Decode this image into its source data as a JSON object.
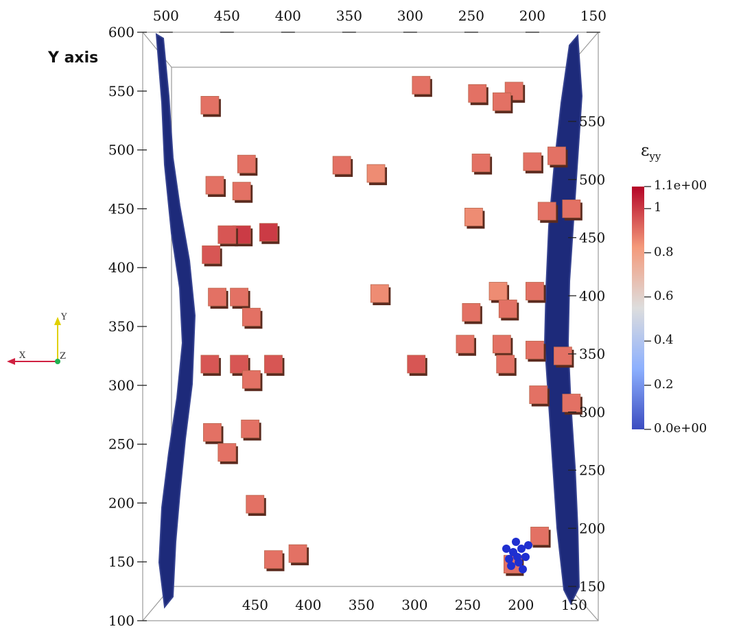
{
  "chart_data": {
    "type": "scatter",
    "ylabel": "Y axis",
    "x_ticks": [
      "500",
      "450",
      "400",
      "350",
      "300",
      "250",
      "200",
      "150"
    ],
    "y_ticks_left": [
      "600",
      "550",
      "500",
      "450",
      "400",
      "350",
      "300",
      "250",
      "200",
      "150",
      "100"
    ],
    "y_ticks_right": [
      "550",
      "500",
      "450",
      "400",
      "350",
      "300",
      "250",
      "200",
      "150"
    ],
    "xlim": [
      519,
      146
    ],
    "ylim": [
      100,
      600
    ],
    "colorbar": {
      "title": "ε",
      "subscript": "yy",
      "range": [
        0.0,
        1.1
      ],
      "tick_labels": [
        "1.1e+00",
        "1",
        "0.8",
        "0.6",
        "0.4",
        "0.2",
        "0.0e+00"
      ],
      "tick_values": [
        1.1,
        1.0,
        0.8,
        0.6,
        0.4,
        0.2,
        0.0
      ]
    },
    "orientation_axes": {
      "y": "Y",
      "x": "X",
      "z": "Z"
    },
    "strain_blocks_xy_value": [
      [
        464,
        538,
        0.9
      ],
      [
        291,
        555,
        0.9
      ],
      [
        245,
        548,
        0.9
      ],
      [
        215,
        550,
        0.9
      ],
      [
        225,
        541,
        0.9
      ],
      [
        434,
        488,
        0.9
      ],
      [
        356,
        487,
        0.9
      ],
      [
        328,
        480,
        0.85
      ],
      [
        242,
        489,
        0.9
      ],
      [
        200,
        490,
        0.9
      ],
      [
        180,
        495,
        0.9
      ],
      [
        460,
        470,
        0.9
      ],
      [
        438,
        465,
        0.9
      ],
      [
        248,
        443,
        0.85
      ],
      [
        188,
        448,
        0.9
      ],
      [
        168,
        450,
        0.9
      ],
      [
        463,
        411,
        0.95
      ],
      [
        438,
        428,
        1.0
      ],
      [
        416,
        430,
        1.0
      ],
      [
        450,
        428,
        0.95
      ],
      [
        458,
        375,
        0.9
      ],
      [
        440,
        375,
        0.9
      ],
      [
        430,
        358,
        0.9
      ],
      [
        325,
        378,
        0.85
      ],
      [
        228,
        380,
        0.85
      ],
      [
        198,
        380,
        0.9
      ],
      [
        250,
        362,
        0.9
      ],
      [
        220,
        365,
        0.9
      ],
      [
        464,
        318,
        0.95
      ],
      [
        440,
        318,
        0.95
      ],
      [
        412,
        318,
        0.95
      ],
      [
        430,
        305,
        0.9
      ],
      [
        295,
        318,
        0.95
      ],
      [
        255,
        335,
        0.9
      ],
      [
        225,
        335,
        0.9
      ],
      [
        198,
        330,
        0.9
      ],
      [
        175,
        325,
        0.9
      ],
      [
        222,
        318,
        0.9
      ],
      [
        195,
        292,
        0.9
      ],
      [
        168,
        285,
        0.9
      ],
      [
        462,
        260,
        0.9
      ],
      [
        450,
        243,
        0.9
      ],
      [
        431,
        263,
        0.9
      ],
      [
        427,
        199,
        0.9
      ],
      [
        412,
        152,
        0.9
      ],
      [
        392,
        157,
        0.9
      ],
      [
        216,
        148,
        0.9
      ],
      [
        194,
        172,
        0.9
      ]
    ],
    "grid": false,
    "legend": "colorbar right"
  }
}
